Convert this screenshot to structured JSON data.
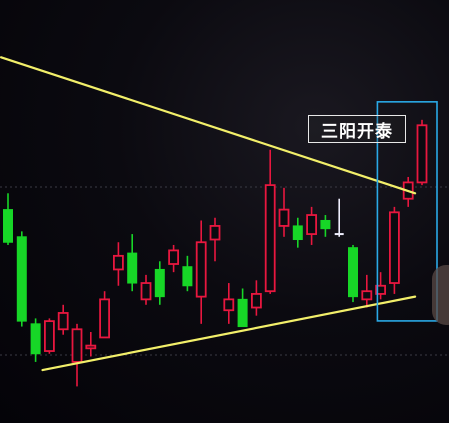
{
  "annotation": {
    "label": "三阳开泰"
  },
  "colors": {
    "up": "#e8173f",
    "down": "#17d627",
    "doji": "#f0f0ff",
    "trendline": "#f2ef6a",
    "highlight": "#2aa9e6",
    "grid": "#3a3a44"
  },
  "chart_data": {
    "type": "candlestick",
    "ylim": [
      0,
      100
    ],
    "candles": [
      {
        "o": 70,
        "c": 58,
        "h": 76,
        "l": 57
      },
      {
        "o": 60,
        "c": 29,
        "h": 62,
        "l": 27
      },
      {
        "o": 28,
        "c": 17,
        "h": 30,
        "l": 14
      },
      {
        "o": 18,
        "c": 29,
        "h": 30,
        "l": 17
      },
      {
        "o": 26,
        "c": 32,
        "h": 35,
        "l": 24
      },
      {
        "o": 14,
        "c": 26,
        "h": 28,
        "l": 5
      },
      {
        "o": 19,
        "c": 20,
        "h": 25,
        "l": 16
      },
      {
        "o": 23,
        "c": 37,
        "h": 40,
        "l": 23
      },
      {
        "o": 48,
        "c": 53,
        "h": 58,
        "l": 42
      },
      {
        "o": 54,
        "c": 43,
        "h": 61,
        "l": 40
      },
      {
        "o": 37,
        "c": 43,
        "h": 46,
        "l": 35
      },
      {
        "o": 48,
        "c": 38,
        "h": 51,
        "l": 35
      },
      {
        "o": 50,
        "c": 55,
        "h": 57,
        "l": 47
      },
      {
        "o": 49,
        "c": 42,
        "h": 53,
        "l": 40
      },
      {
        "o": 38,
        "c": 58,
        "h": 66,
        "l": 28
      },
      {
        "o": 59,
        "c": 64,
        "h": 67,
        "l": 51
      },
      {
        "o": 33,
        "c": 37,
        "h": 43,
        "l": 28
      },
      {
        "o": 37,
        "c": 27,
        "h": 41,
        "l": 27
      },
      {
        "o": 34,
        "c": 39,
        "h": 44,
        "l": 31
      },
      {
        "o": 40,
        "c": 79,
        "h": 92,
        "l": 39
      },
      {
        "o": 64,
        "c": 70,
        "h": 78,
        "l": 60
      },
      {
        "o": 64,
        "c": 59,
        "h": 67,
        "l": 56
      },
      {
        "o": 61,
        "c": 68,
        "h": 71,
        "l": 57
      },
      {
        "o": 66,
        "c": 63,
        "h": 68,
        "l": 60
      },
      {
        "o": 61,
        "c": 61,
        "h": 74,
        "l": 60
      },
      {
        "o": 56,
        "c": 38,
        "h": 57,
        "l": 36
      },
      {
        "o": 37,
        "c": 40,
        "h": 46,
        "l": 34
      },
      {
        "o": 39,
        "c": 42,
        "h": 47,
        "l": 37
      },
      {
        "o": 43,
        "c": 69,
        "h": 71,
        "l": 39
      },
      {
        "o": 74,
        "c": 80,
        "h": 82,
        "l": 71
      },
      {
        "o": 80,
        "c": 101,
        "h": 103,
        "l": 79
      }
    ],
    "trendlines": [
      {
        "name": "upper",
        "from": [
          -0.5,
          126
        ],
        "to": [
          29.5,
          76
        ]
      },
      {
        "name": "lower",
        "from": [
          2.5,
          11
        ],
        "to": [
          29.5,
          38
        ]
      }
    ],
    "highlight_range": {
      "from_index": 28,
      "to_index": 30
    }
  }
}
